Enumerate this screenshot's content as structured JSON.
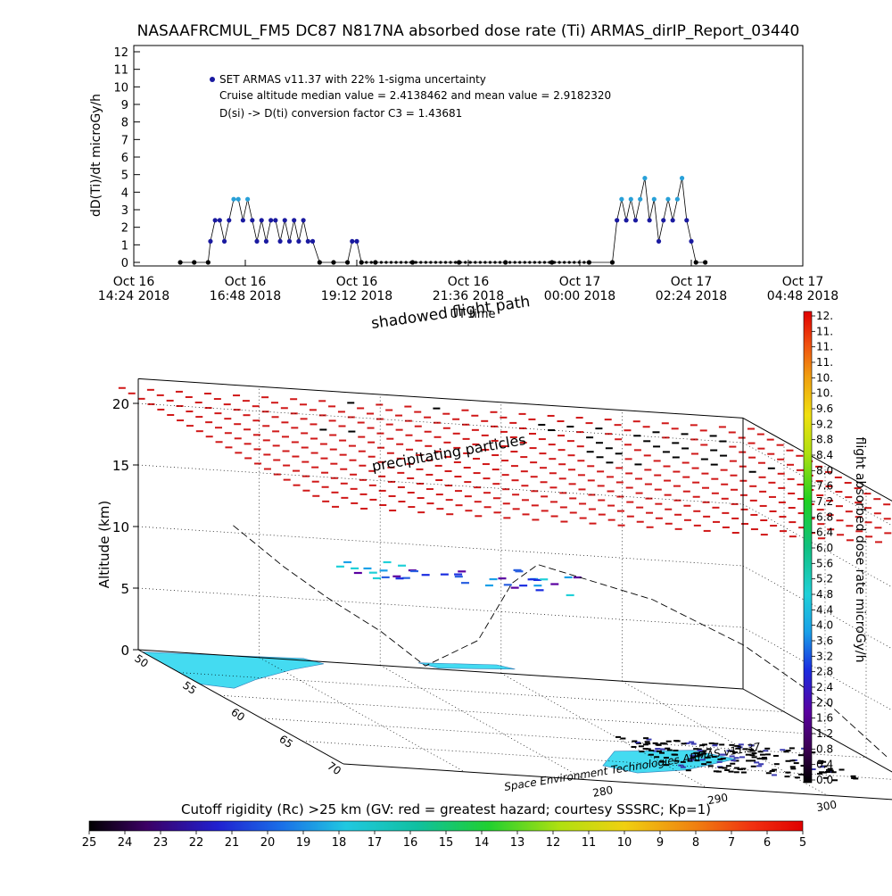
{
  "title": "NASAAFRCMUL_FM5 DC87 N817NA absorbed dose rate (Ti) ARMAS_dirIP_Report_03440",
  "chart_data": [
    {
      "type": "line",
      "ylabel": "dD(Ti)/dt microGy/h",
      "xlabel": "UT time",
      "ylim": [
        0,
        12
      ],
      "yticks": [
        "0",
        "1",
        "2",
        "3",
        "4",
        "5",
        "6",
        "7",
        "8",
        "9",
        "10",
        "11",
        "12"
      ],
      "xticks": [
        {
          "line1": "Oct 16",
          "line2": "14:24 2018"
        },
        {
          "line1": "Oct 16",
          "line2": "16:48 2018"
        },
        {
          "line1": "Oct 16",
          "line2": "19:12 2018"
        },
        {
          "line1": "Oct 16",
          "line2": "21:36 2018"
        },
        {
          "line1": "Oct 17",
          "line2": "00:00 2018"
        },
        {
          "line1": "Oct 17",
          "line2": "02:24 2018"
        },
        {
          "line1": "Oct 17",
          "line2": "04:48 2018"
        }
      ],
      "x_hours_from_first_tick": [
        0,
        2.4,
        4.8,
        7.2,
        9.6,
        12.0,
        14.4
      ],
      "annotations": [
        "SET ARMAS v11.37 with 22% 1-sigma uncertainty",
        "Cruise altitude median value = 2.4138462 and mean value = 2.9182320",
        "D(si) -> D(ti) conversion factor C3 = 1.43681"
      ],
      "series": [
        {
          "name": "SET ARMAS v11.37 with 22% 1-sigma uncertainty",
          "color": "#1a1aa0",
          "t_hours": [
            1.0,
            1.3,
            1.6,
            1.65,
            1.75,
            1.85,
            1.95,
            2.05,
            2.15,
            2.25,
            2.35,
            2.45,
            2.55,
            2.65,
            2.75,
            2.85,
            2.95,
            3.05,
            3.15,
            3.25,
            3.35,
            3.45,
            3.55,
            3.65,
            3.75,
            3.85,
            4.0,
            4.3,
            4.6,
            4.7,
            4.8,
            4.9,
            5.2,
            6.0,
            7.0,
            8.0,
            9.0,
            9.8,
            10.3,
            10.4,
            10.5,
            10.6,
            10.7,
            10.8,
            10.9,
            11.0,
            11.1,
            11.2,
            11.3,
            11.4,
            11.5,
            11.6,
            11.7,
            11.8,
            11.9,
            12.0,
            12.1,
            12.3
          ],
          "values": [
            0,
            0,
            0,
            1.2,
            2.4,
            2.4,
            1.2,
            2.4,
            3.6,
            3.6,
            2.4,
            3.6,
            2.4,
            1.2,
            2.4,
            1.2,
            2.4,
            2.4,
            1.2,
            2.4,
            1.2,
            2.4,
            1.2,
            2.4,
            1.2,
            1.2,
            0,
            0,
            0,
            1.2,
            1.2,
            0,
            0,
            0,
            0,
            0,
            0,
            0,
            0,
            2.4,
            3.6,
            2.4,
            3.6,
            2.4,
            3.6,
            4.8,
            2.4,
            3.6,
            1.2,
            2.4,
            3.6,
            2.4,
            3.6,
            4.8,
            2.4,
            1.2,
            0,
            0
          ]
        }
      ]
    },
    {
      "type": "scatter",
      "zlabel": "Altitude (km)",
      "zticks": [
        "0",
        "5",
        "10",
        "15",
        "20"
      ],
      "lat_ticks": [
        "50",
        "55",
        "60",
        "65",
        "70"
      ],
      "lon_ticks": [
        "280",
        "290",
        "300"
      ],
      "labels": [
        "shadowed flight path",
        "precipitating particles",
        "Space Environment Technologies ARMAS v11.37"
      ],
      "colorbar": {
        "label": "flight absorbed dose rate microGy/h",
        "ticks": [
          "0.0",
          "0.4",
          "0.8",
          "1.2",
          "1.6",
          "2.0",
          "2.4",
          "2.8",
          "3.2",
          "3.6",
          "4.0",
          "4.4",
          "4.8",
          "5.2",
          "5.6",
          "6.0",
          "6.4",
          "6.8",
          "7.2",
          "7.6",
          "8.0",
          "8.4",
          "8.8",
          "9.2",
          "9.6",
          "10.",
          "10.",
          "11.",
          "11.",
          "11.",
          "12."
        ]
      }
    },
    {
      "type": "heatmap",
      "title": "Cutoff rigidity (Rc) >25 km (GV: red = greatest hazard; courtesy SSSRC; Kp=1)",
      "ticks": [
        "25",
        "24",
        "23",
        "22",
        "21",
        "20",
        "19",
        "18",
        "17",
        "16",
        "15",
        "14",
        "13",
        "12",
        "11",
        "10",
        "9",
        "8",
        "7",
        "6",
        "5"
      ]
    }
  ],
  "colors": {
    "series": "#1a1aa0",
    "highlight": "#28a0d8",
    "grid_red": "#d01818",
    "cyan": "#30d8f0"
  }
}
